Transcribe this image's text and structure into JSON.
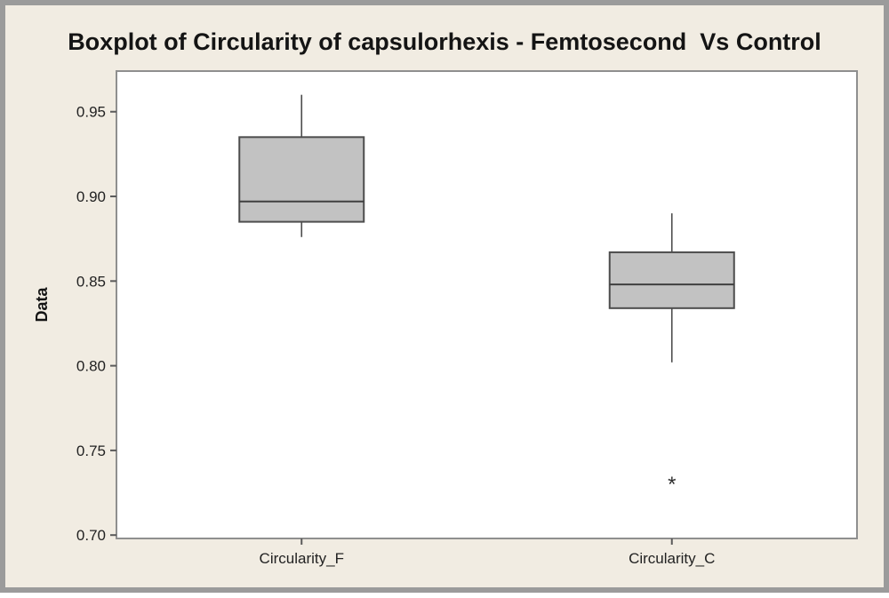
{
  "window": {
    "background": "#f1ece2",
    "frame_border": "#9b9b9b"
  },
  "chart_data": {
    "type": "boxplot",
    "title": "Boxplot of Circularity of capsulorhexis - Femtosecond  Vs Control",
    "ylabel": "Data",
    "xlabel": "",
    "categories": [
      "Circularity_F",
      "Circularity_C"
    ],
    "ylim": [
      0.698,
      0.974
    ],
    "yticks": [
      0.7,
      0.75,
      0.8,
      0.85,
      0.9,
      0.95
    ],
    "ytick_labels": [
      "0.70",
      "0.75",
      "0.80",
      "0.85",
      "0.90",
      "0.95"
    ],
    "grid": false,
    "legend": null,
    "series": [
      {
        "name": "Circularity_F",
        "whisker_low": 0.876,
        "q1": 0.885,
        "median": 0.897,
        "q3": 0.935,
        "whisker_high": 0.96,
        "outliers": []
      },
      {
        "name": "Circularity_C",
        "whisker_low": 0.802,
        "q1": 0.834,
        "median": 0.848,
        "q3": 0.867,
        "whisker_high": 0.89,
        "outliers": [
          0.73
        ]
      }
    ],
    "colors": {
      "box_fill": "#c2c2c2",
      "box_border": "#4d4d4d",
      "median": "#3f3f3f",
      "whisker": "#4d4d4d",
      "outlier": "#2e2e2e",
      "plot_bg": "#ffffff",
      "plot_border": "#8f8f8f",
      "tick": "#5a5a5a",
      "text": "#222222"
    }
  }
}
